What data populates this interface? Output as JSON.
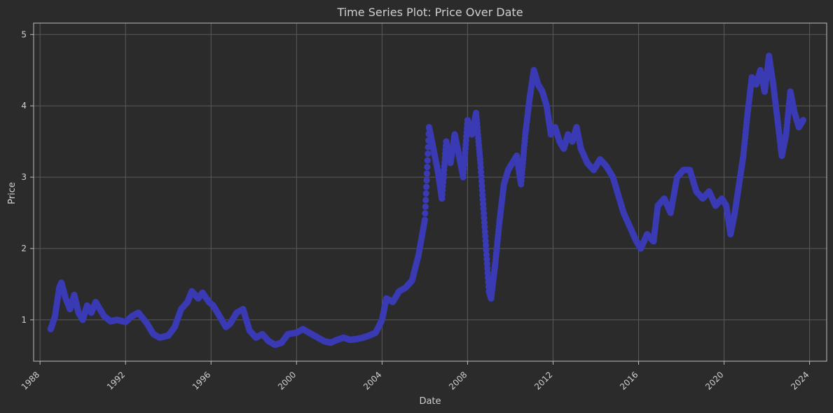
{
  "chart_data": {
    "type": "scatter",
    "title": "Time Series Plot: Price Over Date",
    "xlabel": "Date",
    "ylabel": "Price",
    "xlim": [
      1987.7,
      2024.8
    ],
    "ylim": [
      0.42,
      5.16
    ],
    "x_ticks": [
      "1988",
      "1992",
      "1996",
      "2000",
      "2004",
      "2008",
      "2012",
      "2016",
      "2020",
      "2024"
    ],
    "y_ticks": [
      "1",
      "2",
      "3",
      "4",
      "5"
    ],
    "grid": true,
    "marker_color": "#3a3ab4",
    "background_color": "#2b2b2b",
    "series": [
      {
        "x": [
          1988.5,
          1988.7,
          1988.9,
          1989.0,
          1989.2,
          1989.4,
          1989.6,
          1989.8,
          1990.0,
          1990.2,
          1990.4,
          1990.6,
          1990.8,
          1991.0,
          1991.3,
          1991.6,
          1992.0,
          1992.3,
          1992.6,
          1993.0,
          1993.3,
          1993.6,
          1994.0,
          1994.3,
          1994.6,
          1994.9,
          1995.1,
          1995.4,
          1995.6,
          1995.9,
          1996.1,
          1996.4,
          1996.7,
          1996.9,
          1997.2,
          1997.5,
          1997.8,
          1998.1,
          1998.4,
          1998.7,
          1999.0,
          1999.3,
          1999.6,
          2000.0,
          2000.3,
          2000.7,
          2001.0,
          2001.3,
          2001.6,
          2001.9,
          2002.2,
          2002.5,
          2002.8,
          2003.1,
          2003.4,
          2003.7,
          2004.0,
          2004.2,
          2004.5,
          2004.8,
          2005.1,
          2005.4,
          2005.7,
          2006.0,
          2006.2,
          2006.4,
          2006.6,
          2006.8,
          2007.0,
          2007.2,
          2007.4,
          2007.6,
          2007.8,
          2008.0,
          2008.2,
          2008.4,
          2008.6,
          2008.8,
          2009.0,
          2009.1,
          2009.3,
          2009.5,
          2009.7,
          2009.9,
          2010.1,
          2010.3,
          2010.5,
          2010.7,
          2010.9,
          2011.1,
          2011.3,
          2011.5,
          2011.7,
          2011.9,
          2012.1,
          2012.3,
          2012.5,
          2012.7,
          2012.9,
          2013.1,
          2013.3,
          2013.6,
          2013.9,
          2014.2,
          2014.5,
          2014.8,
          2015.0,
          2015.3,
          2015.6,
          2015.9,
          2016.1,
          2016.4,
          2016.7,
          2016.9,
          2017.2,
          2017.5,
          2017.8,
          2018.1,
          2018.4,
          2018.7,
          2019.0,
          2019.3,
          2019.6,
          2019.9,
          2020.1,
          2020.3,
          2020.5,
          2020.7,
          2020.9,
          2021.1,
          2021.3,
          2021.5,
          2021.7,
          2021.9,
          2022.1,
          2022.3,
          2022.5,
          2022.7,
          2022.9,
          2023.1,
          2023.3,
          2023.5,
          2023.7
        ],
        "y": [
          0.87,
          1.05,
          1.45,
          1.52,
          1.3,
          1.15,
          1.35,
          1.1,
          1.0,
          1.2,
          1.1,
          1.25,
          1.15,
          1.05,
          0.98,
          1.0,
          0.97,
          1.05,
          1.1,
          0.95,
          0.8,
          0.75,
          0.78,
          0.9,
          1.15,
          1.25,
          1.4,
          1.3,
          1.38,
          1.25,
          1.2,
          1.05,
          0.9,
          0.95,
          1.1,
          1.15,
          0.85,
          0.75,
          0.8,
          0.7,
          0.65,
          0.68,
          0.8,
          0.82,
          0.87,
          0.8,
          0.75,
          0.7,
          0.68,
          0.72,
          0.75,
          0.72,
          0.73,
          0.75,
          0.78,
          0.82,
          1.0,
          1.3,
          1.25,
          1.4,
          1.45,
          1.55,
          1.9,
          2.4,
          3.7,
          3.4,
          3.1,
          2.7,
          3.5,
          3.2,
          3.6,
          3.3,
          3.0,
          3.8,
          3.6,
          3.9,
          3.2,
          2.3,
          1.4,
          1.3,
          1.8,
          2.4,
          2.9,
          3.1,
          3.2,
          3.3,
          2.9,
          3.6,
          4.1,
          4.5,
          4.3,
          4.2,
          4.0,
          3.6,
          3.7,
          3.5,
          3.4,
          3.6,
          3.5,
          3.7,
          3.4,
          3.2,
          3.1,
          3.25,
          3.15,
          3.0,
          2.8,
          2.5,
          2.3,
          2.1,
          2.0,
          2.2,
          2.1,
          2.6,
          2.7,
          2.5,
          3.0,
          3.1,
          3.1,
          2.8,
          2.7,
          2.8,
          2.6,
          2.7,
          2.6,
          2.2,
          2.5,
          2.9,
          3.3,
          3.9,
          4.4,
          4.3,
          4.5,
          4.2,
          4.7,
          4.3,
          3.8,
          3.3,
          3.6,
          4.2,
          3.9,
          3.7,
          3.8
        ]
      }
    ]
  }
}
